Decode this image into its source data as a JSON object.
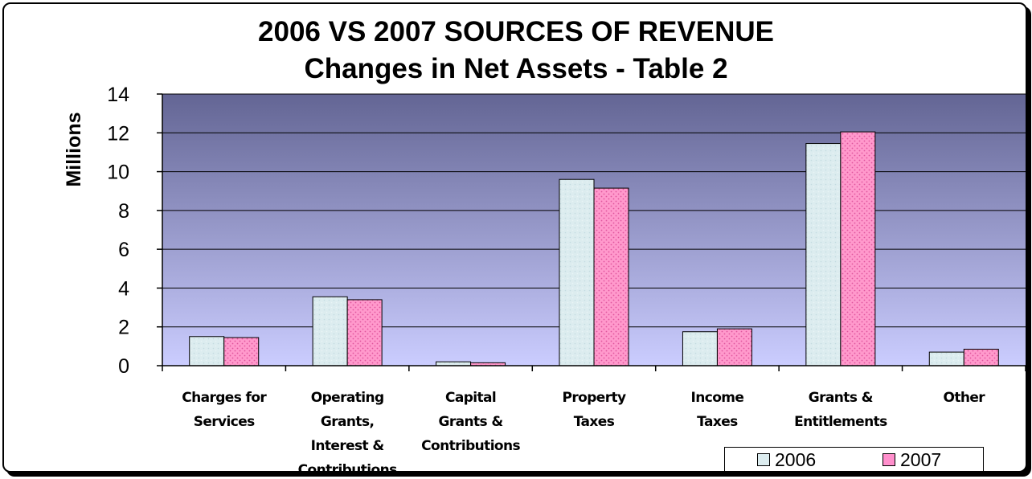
{
  "chart_data": {
    "type": "bar",
    "title": "2006 VS 2007 SOURCES OF REVENUE",
    "subtitle": "Changes in Net Assets - Table 2",
    "xlabel": "",
    "ylabel": "Millions",
    "ylim": [
      0,
      14
    ],
    "yticks": [
      "0",
      "2",
      "4",
      "6",
      "8",
      "10",
      "12",
      "14"
    ],
    "grid": true,
    "legend_position": "bottom-right",
    "categories": [
      [
        "Charges for",
        "Services"
      ],
      [
        "Operating",
        "Grants,",
        "Interest &",
        "Contributions"
      ],
      [
        "Capital",
        "Grants &",
        "Contributions"
      ],
      [
        "Property",
        "Taxes"
      ],
      [
        "Income",
        "Taxes"
      ],
      [
        "Grants &",
        "Entitlements"
      ],
      [
        "Other"
      ]
    ],
    "series": [
      {
        "name": "2006",
        "color": "#dcecef",
        "values": [
          1.5,
          3.55,
          0.2,
          9.6,
          1.75,
          11.45,
          0.7
        ]
      },
      {
        "name": "2007",
        "color": "#ff8fcc",
        "values": [
          1.45,
          3.4,
          0.15,
          9.15,
          1.9,
          12.05,
          0.85
        ]
      }
    ]
  }
}
